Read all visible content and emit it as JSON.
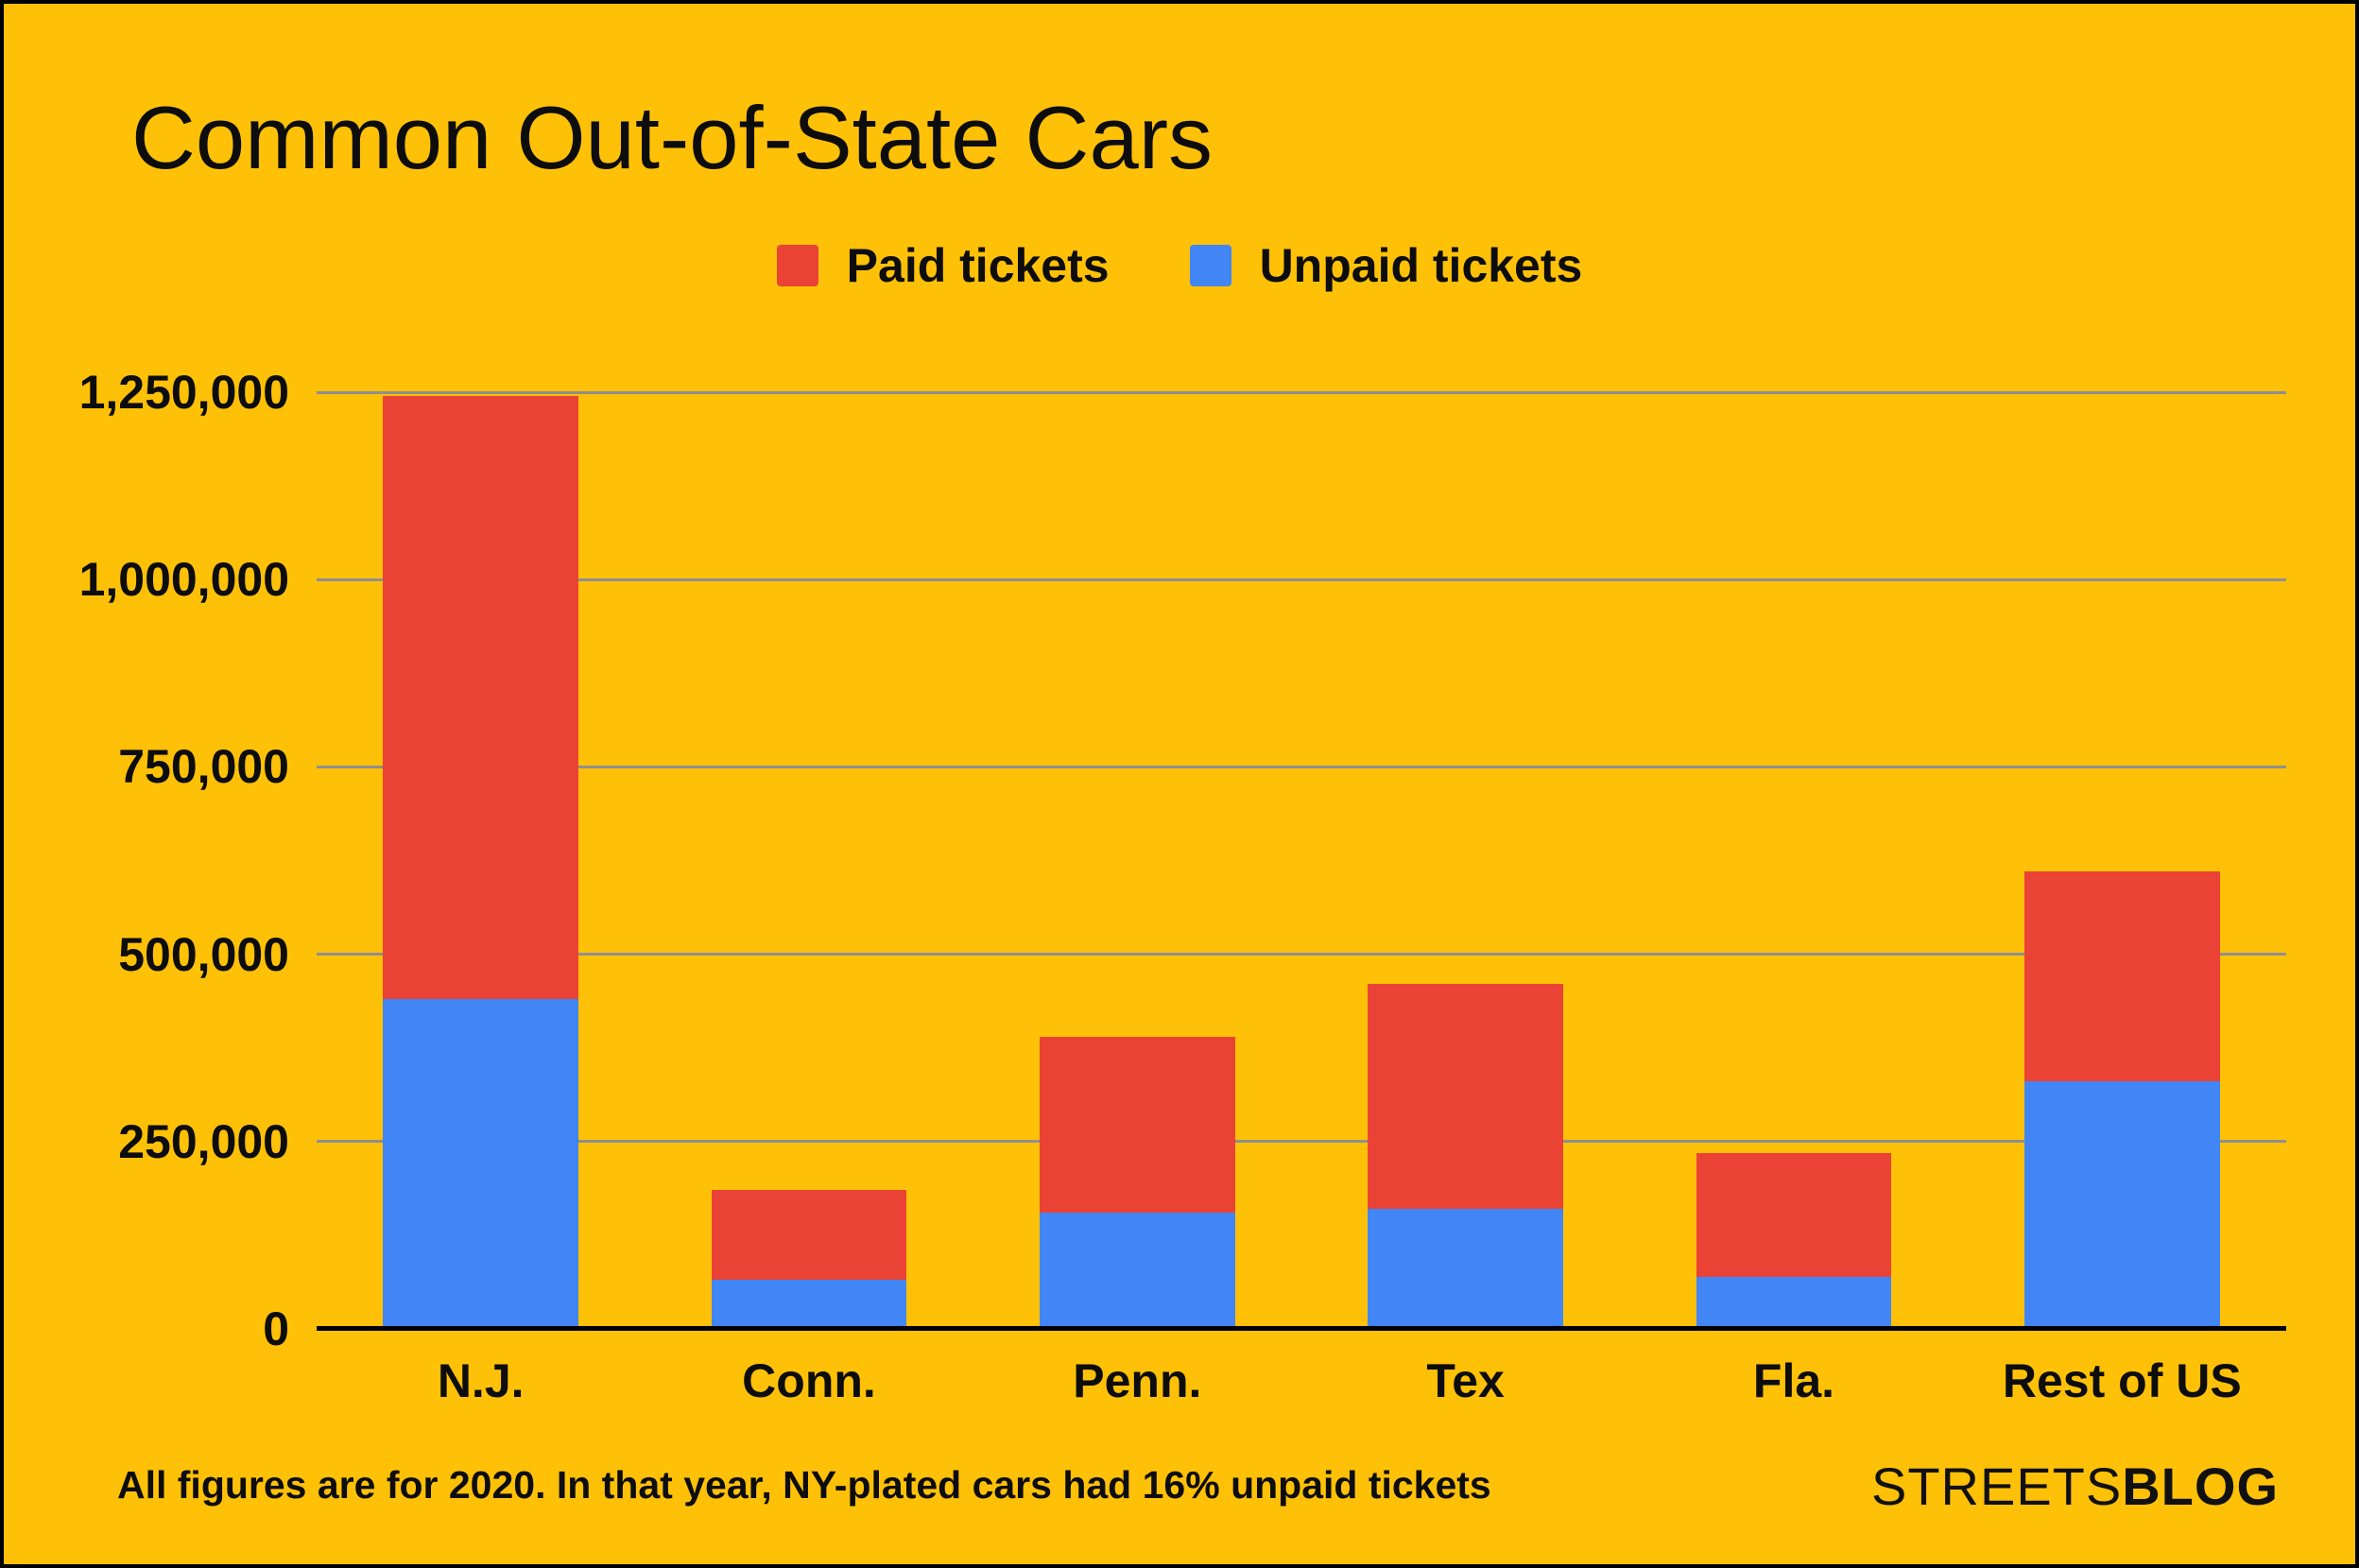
{
  "title": "Common Out-of-State Cars",
  "legend": [
    {
      "label": "Paid tickets",
      "color": "#EA4335"
    },
    {
      "label": "Unpaid tickets",
      "color": "#4285F4"
    }
  ],
  "footer": {
    "note": "All figures are for 2020. In that year, NY-plated cars had 16% unpaid tickets",
    "brand_regular": "STREETS",
    "brand_bold": "BLOG"
  },
  "colors": {
    "background": "#FFC107",
    "paid": "#EA4335",
    "unpaid": "#4285F4",
    "gridline": "#8f8f8f",
    "axis": "#000000",
    "text": "#0d0d0d"
  },
  "chart_data": {
    "type": "bar",
    "stacked": true,
    "title": "Common Out-of-State Cars",
    "categories": [
      "N.J.",
      "Conn.",
      "Penn.",
      "Tex",
      "Fla.",
      "Rest of US"
    ],
    "series": [
      {
        "name": "Unpaid tickets",
        "color": "#4285F4",
        "values": [
          440000,
          65000,
          155000,
          160000,
          70000,
          330000
        ]
      },
      {
        "name": "Paid tickets",
        "color": "#EA4335",
        "values": [
          805000,
          120000,
          235000,
          300000,
          165000,
          280000
        ]
      }
    ],
    "totals": [
      1245000,
      185000,
      390000,
      460000,
      235000,
      610000
    ],
    "xlabel": "",
    "ylabel": "",
    "ylim": [
      0,
      1250000
    ],
    "yticks": [
      0,
      250000,
      500000,
      750000,
      1000000,
      1250000
    ],
    "ytick_labels": [
      "0",
      "250,000",
      "500,000",
      "750,000",
      "1,000,000",
      "1,250,000"
    ],
    "grid": true,
    "legend_position": "top"
  }
}
